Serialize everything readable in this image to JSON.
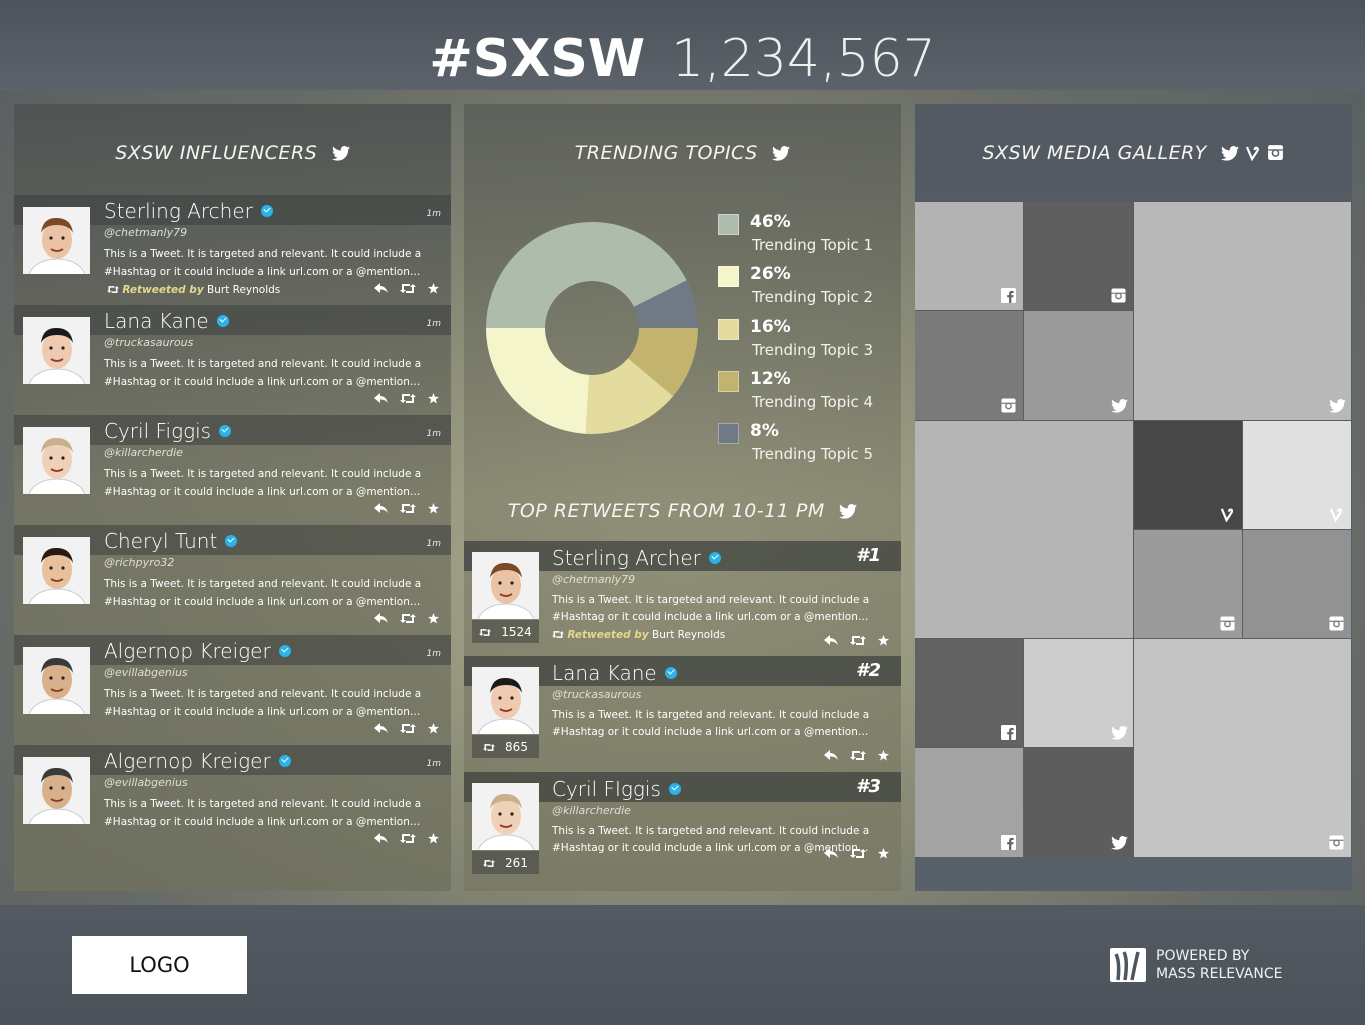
{
  "header": {
    "hashtag": "#SXSW",
    "count": "1,234,567"
  },
  "influencers": {
    "title": "SXSW INFLUENCERS",
    "items": [
      {
        "name": "Sterling Archer",
        "handle": "@chetmanly79",
        "time": "1m",
        "body": "This is a Tweet. It is targeted and relevant. It could include a #Hashtag or it could include a link url.com or a @mention…",
        "retweeted_by_label": "Retweeted by",
        "retweeted_by": "Burt Reynolds"
      },
      {
        "name": "Lana Kane",
        "handle": "@truckasaurous",
        "time": "1m",
        "body": "This is a Tweet. It is targeted and relevant. It could include a #Hashtag or it could include a link url.com or a @mention…"
      },
      {
        "name": "Cyril Figgis",
        "handle": "@killarcherdie",
        "time": "1m",
        "body": "This is a Tweet. It is targeted and relevant. It could include a #Hashtag or it could include a link url.com or a @mention…"
      },
      {
        "name": "Cheryl Tunt",
        "handle": "@richpyro32",
        "time": "1m",
        "body": "This is a Tweet. It is targeted and relevant. It could include a #Hashtag or it could include a link url.com or a @mention…"
      },
      {
        "name": "Algernop Kreiger",
        "handle": "@evillabgenius",
        "time": "1m",
        "body": "This is a Tweet. It is targeted and relevant. It could include a #Hashtag or it could include a link url.com or a @mention…"
      },
      {
        "name": "Algernop Kreiger",
        "handle": "@evillabgenius",
        "time": "1m",
        "body": "This is a Tweet. It is targeted and relevant. It could include a #Hashtag or it could include a link url.com or a @mention…"
      }
    ]
  },
  "trending": {
    "title": "TRENDING TOPICS",
    "colors": [
      "#aebcae",
      "#f4f5cb",
      "#e3dc9e",
      "#c2b46f",
      "#6f7a85"
    ]
  },
  "chart_data": {
    "type": "pie",
    "categories": [
      "Trending Topic 1",
      "Trending Topic 2",
      "Trending Topic 3",
      "Trending Topic 4",
      "Trending Topic 5"
    ],
    "values": [
      46,
      26,
      16,
      12,
      8
    ],
    "labels": [
      "46%",
      "26%",
      "16%",
      "12%",
      "8%"
    ]
  },
  "retweets": {
    "title": "TOP RETWEETS FROM 10-11 PM",
    "items": [
      {
        "name": "Sterling Archer",
        "rank": "#1",
        "handle": "@chetmanly79",
        "count": "1524",
        "body": "This is a Tweet. It is targeted and relevant. It could include a #Hashtag or it could include a link url.com or a @mention…",
        "retweeted_by_label": "Retweeted by",
        "retweeted_by": "Burt Reynolds"
      },
      {
        "name": "Lana Kane",
        "rank": "#2",
        "handle": "@truckasaurous",
        "count": "865",
        "body": "This is a Tweet. It is targeted and relevant. It could include a #Hashtag or it could include a link url.com or a @mention…"
      },
      {
        "name": "Cyril FIggis",
        "rank": "#3",
        "handle": "@killarcherdie",
        "count": "261",
        "body": "This is a Tweet. It is targeted and relevant. It could include a #Hashtag or it could include a link url.com or a @mention…"
      }
    ]
  },
  "gallery": {
    "title": "SXSW MEDIA GALLERY",
    "tiles": [
      {
        "icon": "facebook-icon",
        "shade": "#b3b3b3"
      },
      {
        "icon": "instagram-icon",
        "shade": "#5f5f5f"
      },
      {
        "icon": "twitter-icon",
        "shade": "#b8b8b8"
      },
      {
        "icon": "instagram-icon",
        "shade": "#7a7a7a"
      },
      {
        "icon": "twitter-icon",
        "shade": "#9a9a9a"
      },
      {
        "icon": "none",
        "shade": "#b5b5b5"
      },
      {
        "icon": "vine-icon",
        "shade": "#474747"
      },
      {
        "icon": "vine-icon",
        "shade": "#e0e0e0"
      },
      {
        "icon": "instagram-icon",
        "shade": "#9b9b9b"
      },
      {
        "icon": "instagram-icon",
        "shade": "#929292"
      },
      {
        "icon": "facebook-icon",
        "shade": "#626262"
      },
      {
        "icon": "twitter-icon",
        "shade": "#cdcdcd"
      },
      {
        "icon": "facebook-icon",
        "shade": "#a3a3a3"
      },
      {
        "icon": "twitter-icon",
        "shade": "#5d5d5d"
      },
      {
        "icon": "instagram-icon",
        "shade": "#c4c4c4"
      }
    ]
  },
  "footer": {
    "logo": "LOGO",
    "powered_line1": "POWERED BY",
    "powered_line2": "MASS RELEVANCE"
  }
}
